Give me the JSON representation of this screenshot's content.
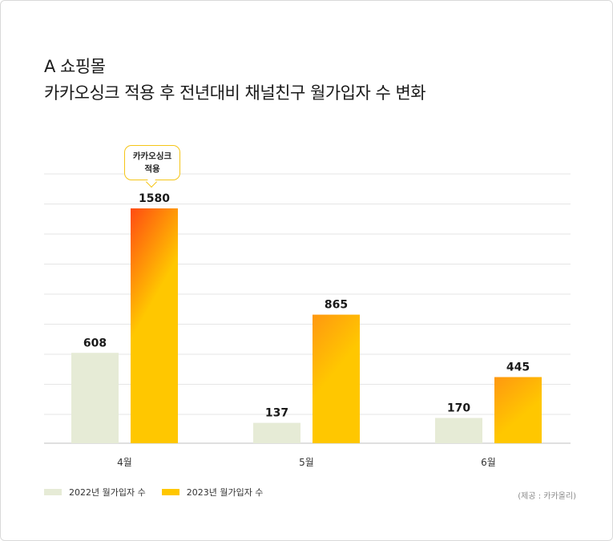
{
  "title_line1": "A 쇼핑몰",
  "title_line2": "카카오싱크 적용 후 전년대비 채널친구 월가입자 수 변화",
  "callout": {
    "line1": "카카오싱크",
    "line2": "적용"
  },
  "source": "(제공 : 카카올리)",
  "colors": {
    "series_2022": "#e6ebd6",
    "series_2023_top_peak": "#ff4b12",
    "series_2023_top": "#ff9810",
    "series_2023_bottom": "#ffc700",
    "gridline": "#e6e6e6",
    "axis": "#cccccc",
    "callout_border": "#f5c518"
  },
  "chart_data": {
    "type": "bar",
    "title": "카카오싱크 적용 후 전년대비 채널친구 월가입자 수 변화",
    "categories": [
      "4월",
      "5월",
      "6월"
    ],
    "series": [
      {
        "name": "2022년 월가입자 수",
        "values": [
          608,
          137,
          170
        ]
      },
      {
        "name": "2023년 월가입자 수",
        "values": [
          1580,
          865,
          445
        ]
      }
    ],
    "ylim": [
      0,
      1580
    ],
    "grid": true,
    "legend_position": "bottom-left",
    "annotations": [
      {
        "category": "4월",
        "series": "2023년 월가입자 수",
        "text": "카카오싱크 적용"
      }
    ]
  }
}
